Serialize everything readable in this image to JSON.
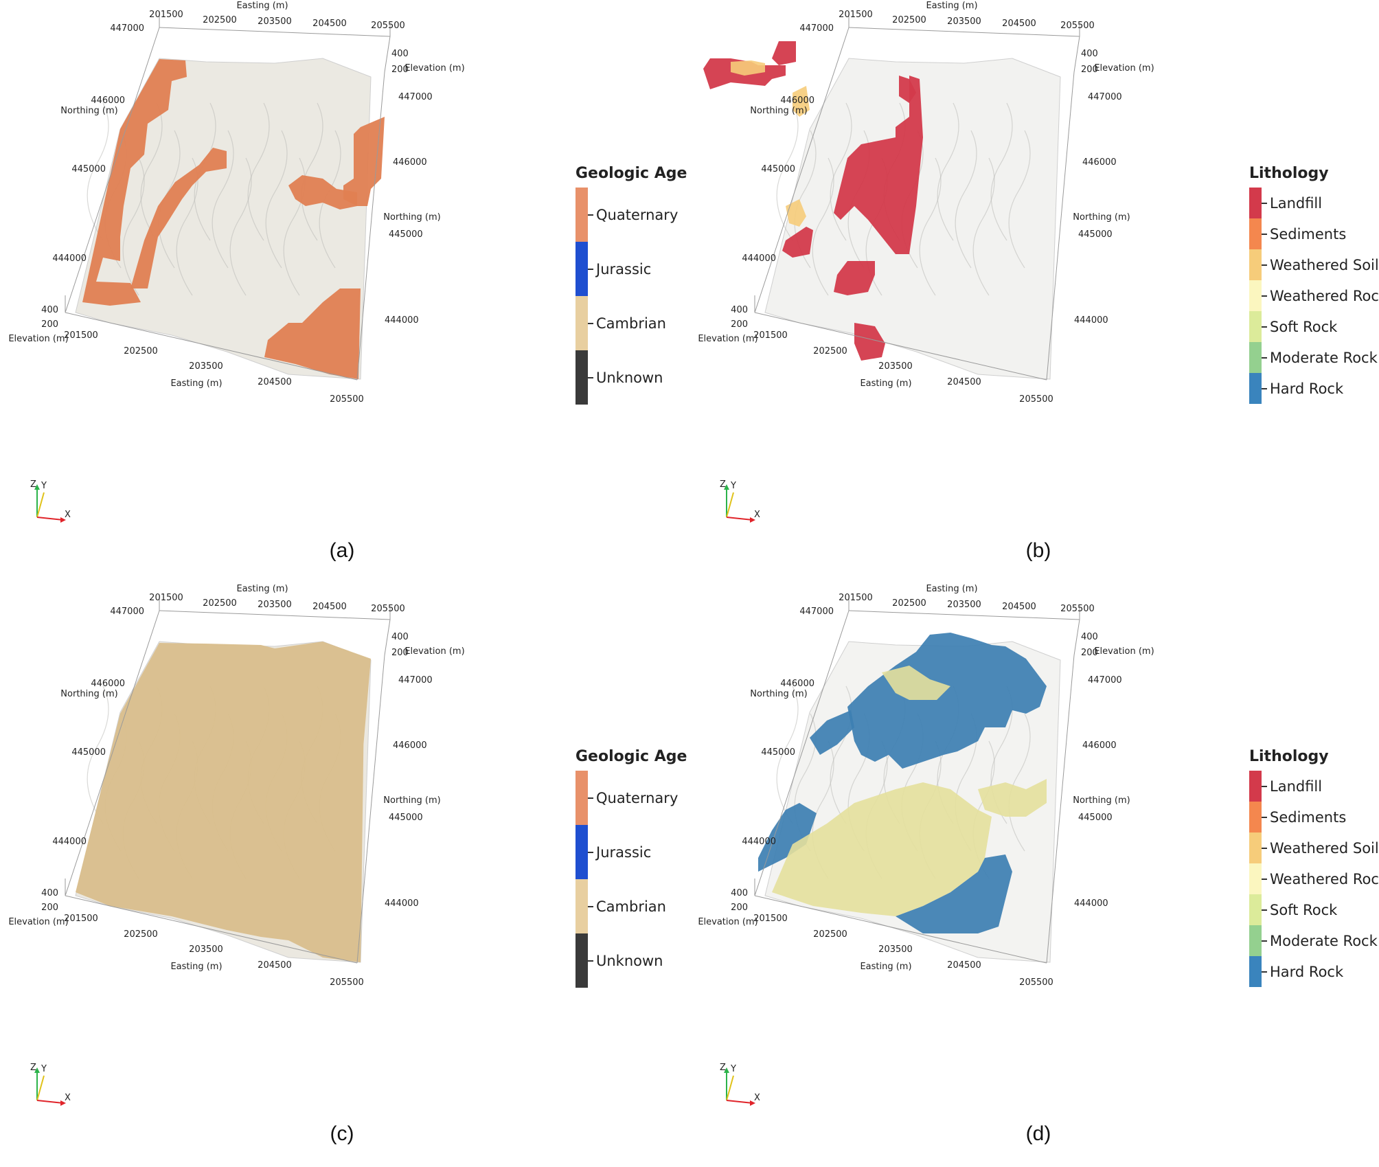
{
  "panels": [
    {
      "id": "a",
      "caption": "(a)",
      "legend_title": "Geologic Age",
      "legend_kind": "geo",
      "legend": [
        {
          "label": "Quaternary",
          "color": "#e8916a"
        },
        {
          "label": "Jurassic",
          "color": "#1f4fd0"
        },
        {
          "label": "Cambrian",
          "color": "#e8cfa0"
        },
        {
          "label": "Unknown",
          "color": "#3a3a3a"
        }
      ],
      "surface_color": "#ebe9e2",
      "patch_color": "#e07f52"
    },
    {
      "id": "b",
      "caption": "(b)",
      "legend_title": "Lithology",
      "legend_kind": "lith",
      "legend": [
        {
          "label": "Landfill",
          "color": "#d33a4b"
        },
        {
          "label": "Sediments",
          "color": "#f4874e"
        },
        {
          "label": "Weathered Soil",
          "color": "#f6cc7a"
        },
        {
          "label": "Weathered Rock",
          "color": "#fbf6bf"
        },
        {
          "label": "Soft Rock",
          "color": "#dceb9a"
        },
        {
          "label": "Moderate Rock",
          "color": "#94d08f"
        },
        {
          "label": "Hard Rock",
          "color": "#3a84bd"
        }
      ],
      "surface_color": "#f2f2f0",
      "patch_color": "#d33a4b"
    },
    {
      "id": "c",
      "caption": "(c)",
      "legend_title": "Geologic Age",
      "legend_kind": "geo",
      "legend": [
        {
          "label": "Quaternary",
          "color": "#e8916a"
        },
        {
          "label": "Jurassic",
          "color": "#1f4fd0"
        },
        {
          "label": "Cambrian",
          "color": "#e8cfa0"
        },
        {
          "label": "Unknown",
          "color": "#3a3a3a"
        }
      ],
      "surface_color": "#ebe8e0",
      "patch_color": "#d9be8c"
    },
    {
      "id": "d",
      "caption": "(d)",
      "legend_title": "Lithology",
      "legend_kind": "lith",
      "legend": [
        {
          "label": "Landfill",
          "color": "#d33a4b"
        },
        {
          "label": "Sediments",
          "color": "#f4874e"
        },
        {
          "label": "Weathered Soil",
          "color": "#f6cc7a"
        },
        {
          "label": "Weathered Rock",
          "color": "#fbf6bf"
        },
        {
          "label": "Soft Rock",
          "color": "#dceb9a"
        },
        {
          "label": "Moderate Rock",
          "color": "#94d08f"
        },
        {
          "label": "Hard Rock",
          "color": "#3a84bd"
        }
      ],
      "surface_color": "#f3f3f1",
      "patch_color": "#3d7fb2"
    }
  ],
  "axes": {
    "easting_label": "Easting (m)",
    "northing_label": "Northing (m)",
    "elevation_label": "Elevation (m)",
    "easting_ticks": [
      "201500",
      "202500",
      "203500",
      "204500",
      "205500"
    ],
    "northing_left_ticks": [
      "447000",
      "446000",
      "445000",
      "444000"
    ],
    "northing_right_ticks": [
      "447000",
      "446000",
      "445000",
      "444000"
    ],
    "elevation_ticks": [
      "400",
      "200"
    ]
  },
  "triad": {
    "z": "Z",
    "y": "Y",
    "x": "X"
  }
}
